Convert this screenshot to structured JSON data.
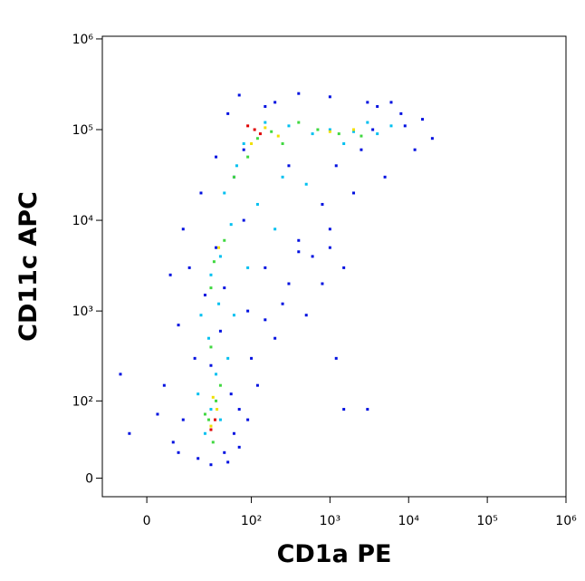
{
  "chart_data": {
    "type": "scatter",
    "x_label": "CD1a PE",
    "y_label": "CD11c APC",
    "xscale": "biexponential",
    "yscale": "biexponential",
    "xlim": [
      -16,
      1000000
    ],
    "ylim": [
      -14,
      1070000
    ],
    "xticks": [
      0,
      {
        "value": 100,
        "label": "10²"
      },
      {
        "value": 1000,
        "label": "10³"
      },
      {
        "value": 10000,
        "label": "10⁴"
      },
      {
        "value": 100000,
        "label": "10⁵"
      },
      {
        "value": 1000000,
        "label": "10⁶"
      }
    ],
    "yticks": [
      0,
      {
        "value": 100,
        "label": "10²"
      },
      {
        "value": 1000,
        "label": "10³"
      },
      {
        "value": 10000,
        "label": "10⁴"
      },
      {
        "value": 100000,
        "label": "10⁵"
      },
      {
        "value": 1000000,
        "label": "10⁶"
      }
    ],
    "series": [
      {
        "color": "#0010e0",
        "x": [
          8,
          12,
          5,
          20,
          45,
          60,
          70,
          18,
          10,
          25,
          15,
          12,
          22,
          35,
          50,
          200,
          400,
          1000,
          3000,
          8000,
          12000,
          5000,
          2000,
          1000,
          600,
          300,
          150,
          100,
          250,
          800,
          2500,
          3500,
          20000,
          15000,
          6000,
          150,
          80,
          60,
          40,
          30,
          55,
          3,
          -5,
          -8,
          70,
          90,
          120,
          500,
          200,
          1500,
          800,
          30,
          50,
          10,
          35,
          45,
          7,
          90,
          400,
          1200,
          9000,
          4000,
          150,
          80,
          70,
          300,
          3000,
          1500,
          1000,
          1200,
          400
        ],
        "y": [
          30,
          60,
          150,
          15,
          20,
          40,
          80,
          300,
          700,
          1500,
          3000,
          8000,
          20000,
          50000,
          150000,
          200000,
          250000,
          230000,
          200000,
          150000,
          60000,
          30000,
          20000,
          8000,
          4000,
          2000,
          800,
          300,
          1200,
          15000,
          60000,
          100000,
          80000,
          130000,
          200000,
          3000,
          10000,
          30000,
          600,
          250,
          120,
          70,
          40,
          200,
          25,
          60,
          150,
          900,
          500,
          3000,
          2000,
          10,
          12,
          20,
          5000,
          1800,
          2500,
          1000,
          6000,
          40000,
          110000,
          180000,
          180000,
          60000,
          240000,
          40000,
          80,
          80,
          5000,
          300,
          4500
        ]
      },
      {
        "color": "#00c0f0",
        "x": [
          25,
          30,
          40,
          20,
          35,
          28,
          38,
          30,
          40,
          55,
          45,
          65,
          80,
          150,
          300,
          600,
          1000,
          2000,
          4000,
          6000,
          250,
          500,
          120,
          200,
          90,
          60,
          50,
          22,
          1500,
          3000
        ],
        "y": [
          40,
          80,
          60,
          120,
          200,
          500,
          1200,
          2500,
          4000,
          9000,
          20000,
          40000,
          70000,
          120000,
          110000,
          90000,
          100000,
          95000,
          90000,
          110000,
          30000,
          25000,
          15000,
          8000,
          3000,
          900,
          300,
          900,
          70000,
          120000
        ]
      },
      {
        "color": "#40d840",
        "x": [
          28,
          35,
          25,
          32,
          40,
          30,
          33,
          45,
          90,
          120,
          180,
          250,
          700,
          1300,
          2500,
          400,
          60,
          30
        ],
        "y": [
          60,
          100,
          70,
          30,
          150,
          400,
          3500,
          6000,
          50000,
          80000,
          95000,
          70000,
          100000,
          90000,
          85000,
          120000,
          30000,
          1800
        ]
      },
      {
        "color": "#f0e000",
        "x": [
          30,
          36,
          32,
          38,
          100,
          150,
          220,
          1000,
          2000
        ],
        "y": [
          50,
          80,
          110,
          5000,
          70000,
          105000,
          85000,
          95000,
          100000
        ]
      },
      {
        "color": "#e00000",
        "x": [
          34,
          30,
          110,
          130,
          90
        ],
        "y": [
          60,
          45,
          100000,
          90000,
          110000
        ]
      }
    ]
  }
}
